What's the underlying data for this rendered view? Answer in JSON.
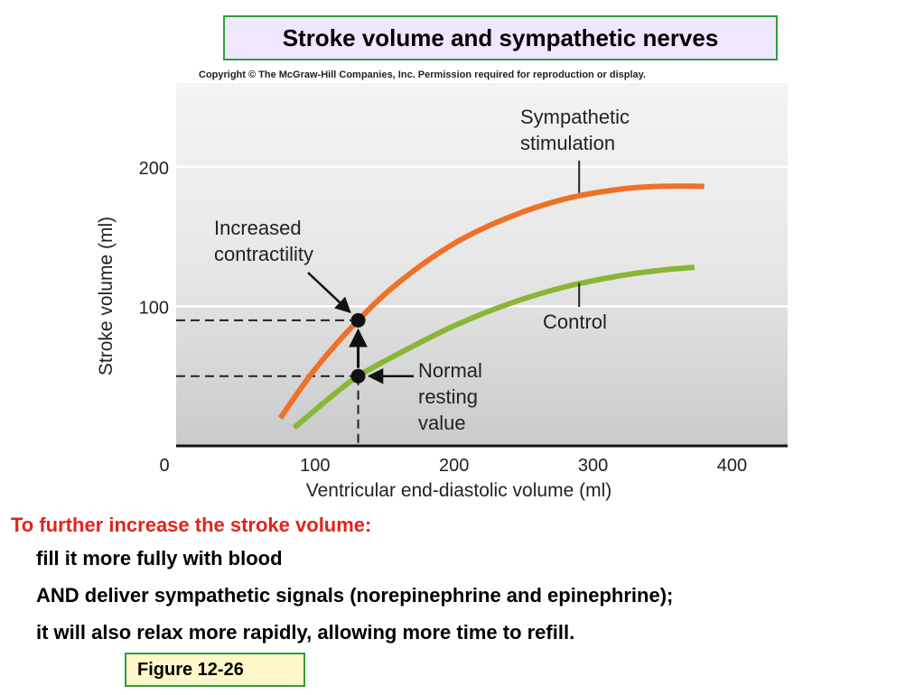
{
  "title": "Stroke volume and sympathetic nerves",
  "copyright": "Copyright © The McGraw-Hill Companies, Inc. Permission required for reproduction or display.",
  "chart_data": {
    "type": "line",
    "xlabel": "Ventricular end-diastolic volume (ml)",
    "ylabel": "Stroke volume (ml)",
    "xlim": [
      0,
      440
    ],
    "ylim": [
      0,
      260
    ],
    "xticks": [
      0,
      100,
      200,
      300,
      400
    ],
    "yticks": [
      100,
      200
    ],
    "grid": true,
    "series": [
      {
        "name": "Sympathetic stimulation",
        "color": "#ee7127",
        "x": [
          75,
          100,
          131,
          160,
          200,
          240,
          280,
          320,
          350,
          380
        ],
        "y": [
          20,
          55,
          90,
          117,
          145,
          164,
          177,
          184,
          186,
          186
        ]
      },
      {
        "name": "Control",
        "color": "#8ab636",
        "x": [
          85,
          110,
          131,
          160,
          200,
          240,
          280,
          320,
          350,
          373
        ],
        "y": [
          13,
          34,
          50,
          66,
          86,
          102,
          114,
          122,
          126,
          128
        ]
      }
    ],
    "annotations": [
      {
        "label": "Sympathetic stimulation",
        "x": 290,
        "y": 180
      },
      {
        "label": "Control",
        "x": 290,
        "y": 118
      },
      {
        "label": "Increased contractility",
        "x": 131,
        "y": 90
      },
      {
        "label": "Normal resting value",
        "x": 131,
        "y": 50
      }
    ],
    "points": [
      {
        "x": 131,
        "y": 90
      },
      {
        "x": 131,
        "y": 50
      }
    ],
    "labels": {
      "sympathetic": [
        "Sympathetic",
        "stimulation"
      ],
      "control": "Control",
      "increased": [
        "Increased",
        "contractility"
      ],
      "normal": [
        "Normal",
        "resting",
        "value"
      ]
    }
  },
  "text": {
    "heading": "To further increase the stroke volume:",
    "lines": [
      "fill it more fully with blood",
      "AND deliver sympathetic signals (norepinephrine and epinephrine);",
      "it will also relax more rapidly, allowing more time to refill."
    ]
  },
  "figure_label": "Figure 12-26"
}
